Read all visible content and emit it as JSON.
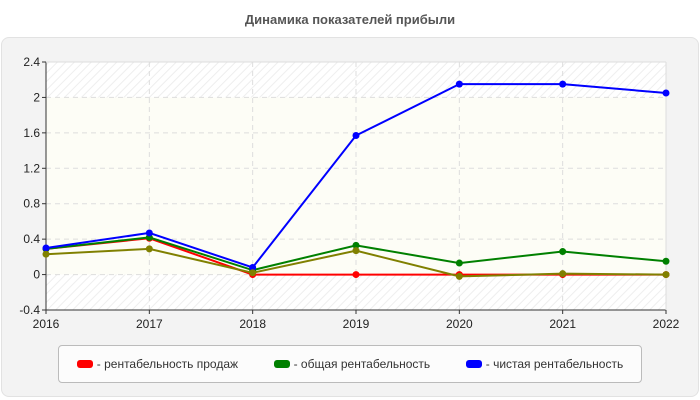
{
  "title": "Динамика показателей прибыли",
  "chart_data": {
    "type": "line",
    "title": "Динамика показателей прибыли",
    "x": [
      "2016",
      "2017",
      "2018",
      "2019",
      "2020",
      "2021",
      "2022"
    ],
    "ylim": [
      -0.4,
      2.4
    ],
    "yticks": [
      "2.4",
      "2",
      "1.6",
      "1.2",
      "0.8",
      "0.4",
      "0",
      "-0.4"
    ],
    "grid": true,
    "legend_position": "bottom",
    "series": [
      {
        "name": "рентабельность продаж",
        "color": "#ff0000",
        "values": [
          0.29,
          0.41,
          0.0,
          0.0,
          0.0,
          0.0,
          0.0
        ]
      },
      {
        "name": "общая рентабельность",
        "color": "#008000",
        "values": [
          0.29,
          0.42,
          0.05,
          0.33,
          0.13,
          0.26,
          0.15
        ]
      },
      {
        "name": "чистая рентабельность",
        "color": "#0000ff",
        "values": [
          0.3,
          0.47,
          0.08,
          1.57,
          2.15,
          2.15,
          2.05
        ]
      },
      {
        "name": "",
        "color": "#808000",
        "values": [
          0.23,
          0.29,
          0.02,
          0.27,
          -0.02,
          0.01,
          0.0
        ]
      }
    ]
  },
  "legend": [
    {
      "label": "- рентабельность продаж",
      "color": "#ff0000"
    },
    {
      "label": "- общая рентабельность",
      "color": "#008000"
    },
    {
      "label": "- чистая рентабельность",
      "color": "#0000ff"
    }
  ]
}
